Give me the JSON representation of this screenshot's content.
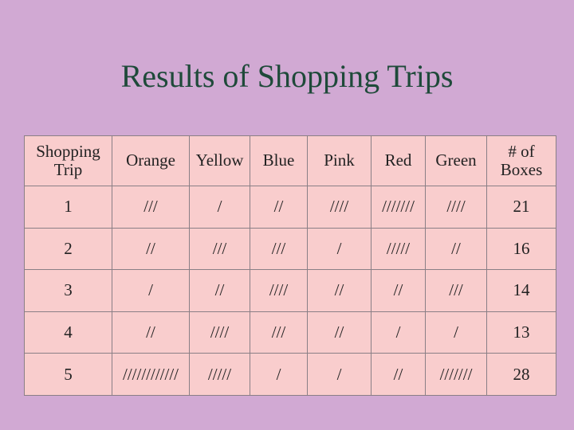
{
  "title": "Results of Shopping Trips",
  "table": {
    "header": [
      "Shopping Trip",
      "Orange",
      "Yellow",
      "Blue",
      "Pink",
      "Red",
      "Green",
      "# of Boxes"
    ],
    "rows": [
      [
        "1",
        "///",
        "/",
        "//",
        "////",
        "///////",
        "////",
        "21"
      ],
      [
        "2",
        "//",
        "///",
        "///",
        "/",
        "/////",
        "//",
        "16"
      ],
      [
        "3",
        "/",
        "//",
        "////",
        "//",
        "//",
        "///",
        "14"
      ],
      [
        "4",
        "//",
        "////",
        "///",
        "//",
        "/",
        "/",
        "13"
      ],
      [
        "5",
        "////////////",
        "/////",
        "/",
        "/",
        "//",
        "///////",
        "28"
      ]
    ]
  }
}
